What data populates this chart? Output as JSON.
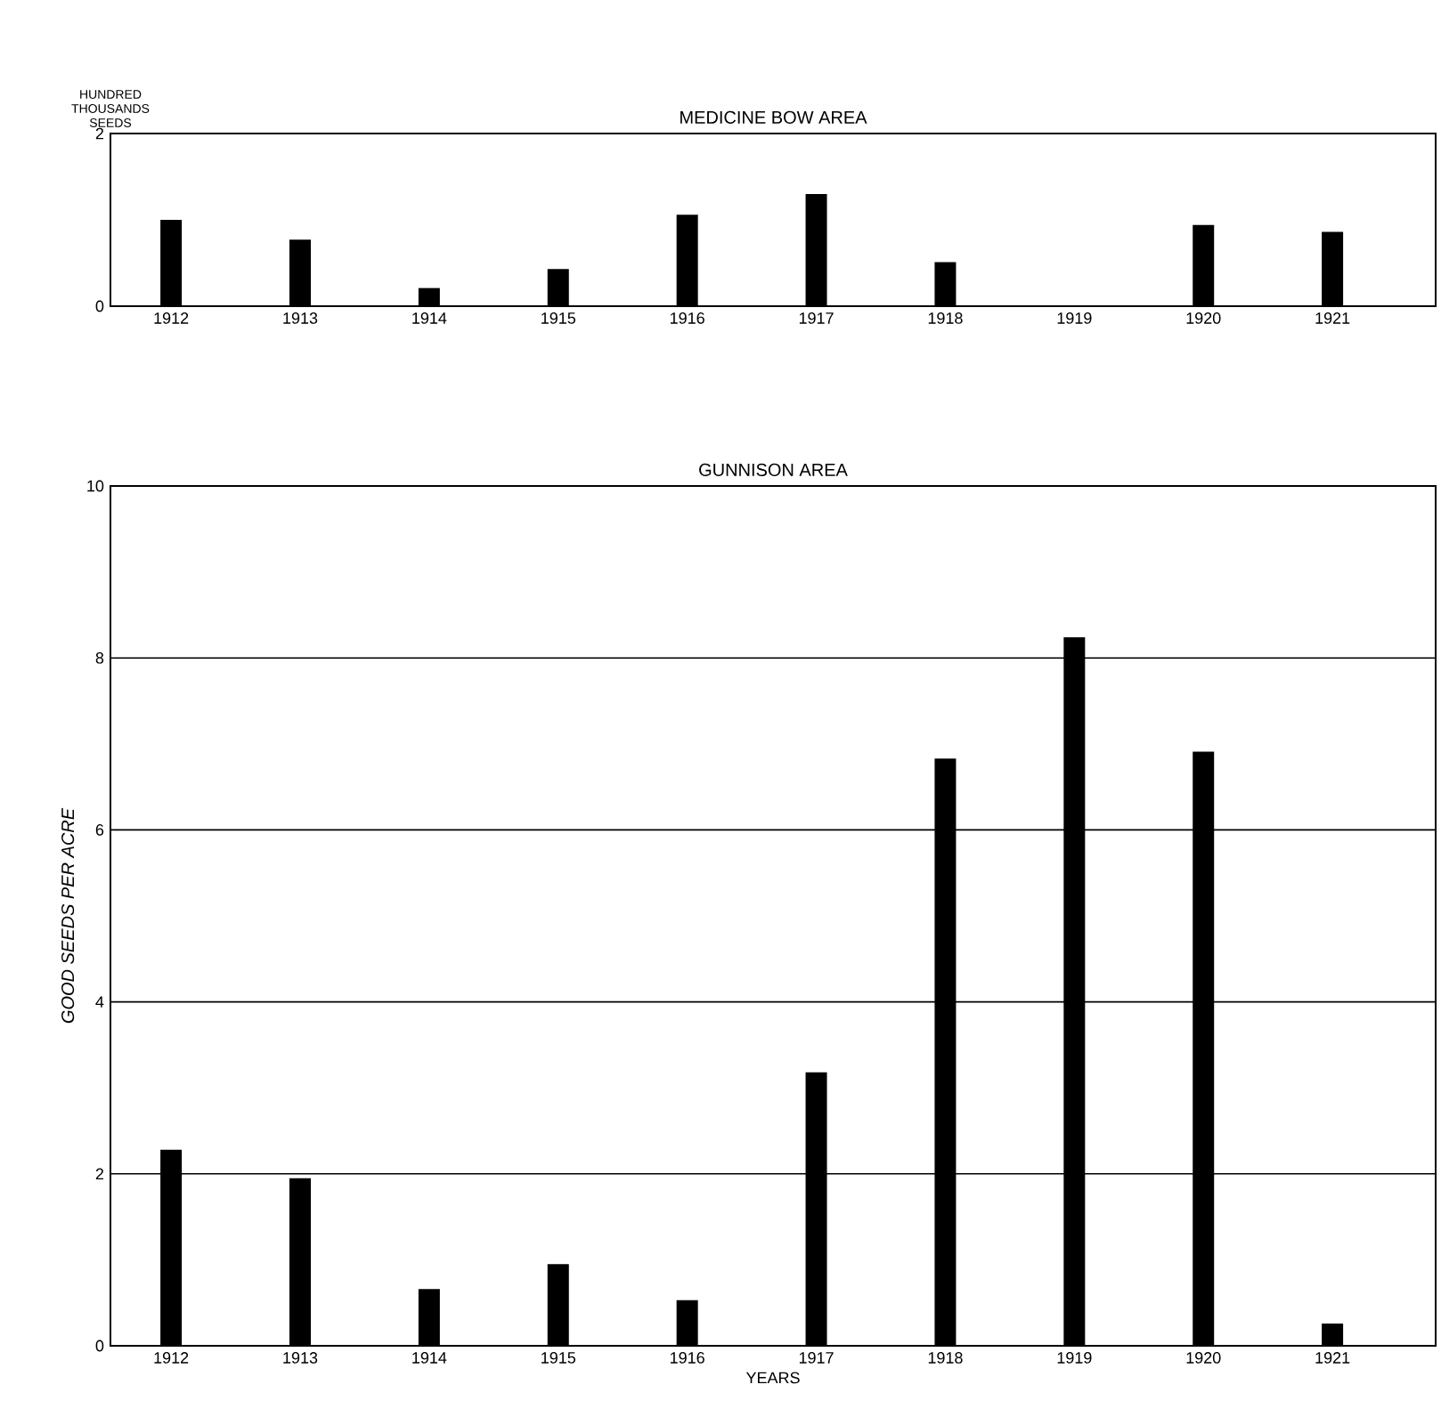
{
  "chart_data": [
    {
      "type": "bar",
      "title": "MEDICINE BOW AREA",
      "ylabel": "HUNDRED THOUSANDS SEEDS",
      "categories": [
        "1912",
        "1913",
        "1914",
        "1915",
        "1916",
        "1917",
        "1918",
        "1919",
        "1920",
        "1921"
      ],
      "values": [
        1.0,
        0.77,
        0.21,
        0.43,
        1.06,
        1.3,
        0.51,
        0,
        0.94,
        0.86
      ],
      "color": "#000000",
      "ylim": [
        0,
        2
      ],
      "yticks": [
        0,
        2
      ]
    },
    {
      "type": "bar",
      "title": "GUNNISON AREA",
      "ylabel": "GOOD SEEDS PER ACRE",
      "xlabel": "YEARS",
      "categories": [
        "1912",
        "1913",
        "1914",
        "1915",
        "1916",
        "1917",
        "1918",
        "1919",
        "1920",
        "1921"
      ],
      "values": [
        2.28,
        1.95,
        0.66,
        0.95,
        0.53,
        3.18,
        6.83,
        8.24,
        6.91,
        0.26
      ],
      "color": "#000000",
      "ylim": [
        0,
        10
      ],
      "yticks": [
        0,
        2,
        4,
        6,
        8,
        10
      ],
      "grid": "y"
    }
  ]
}
